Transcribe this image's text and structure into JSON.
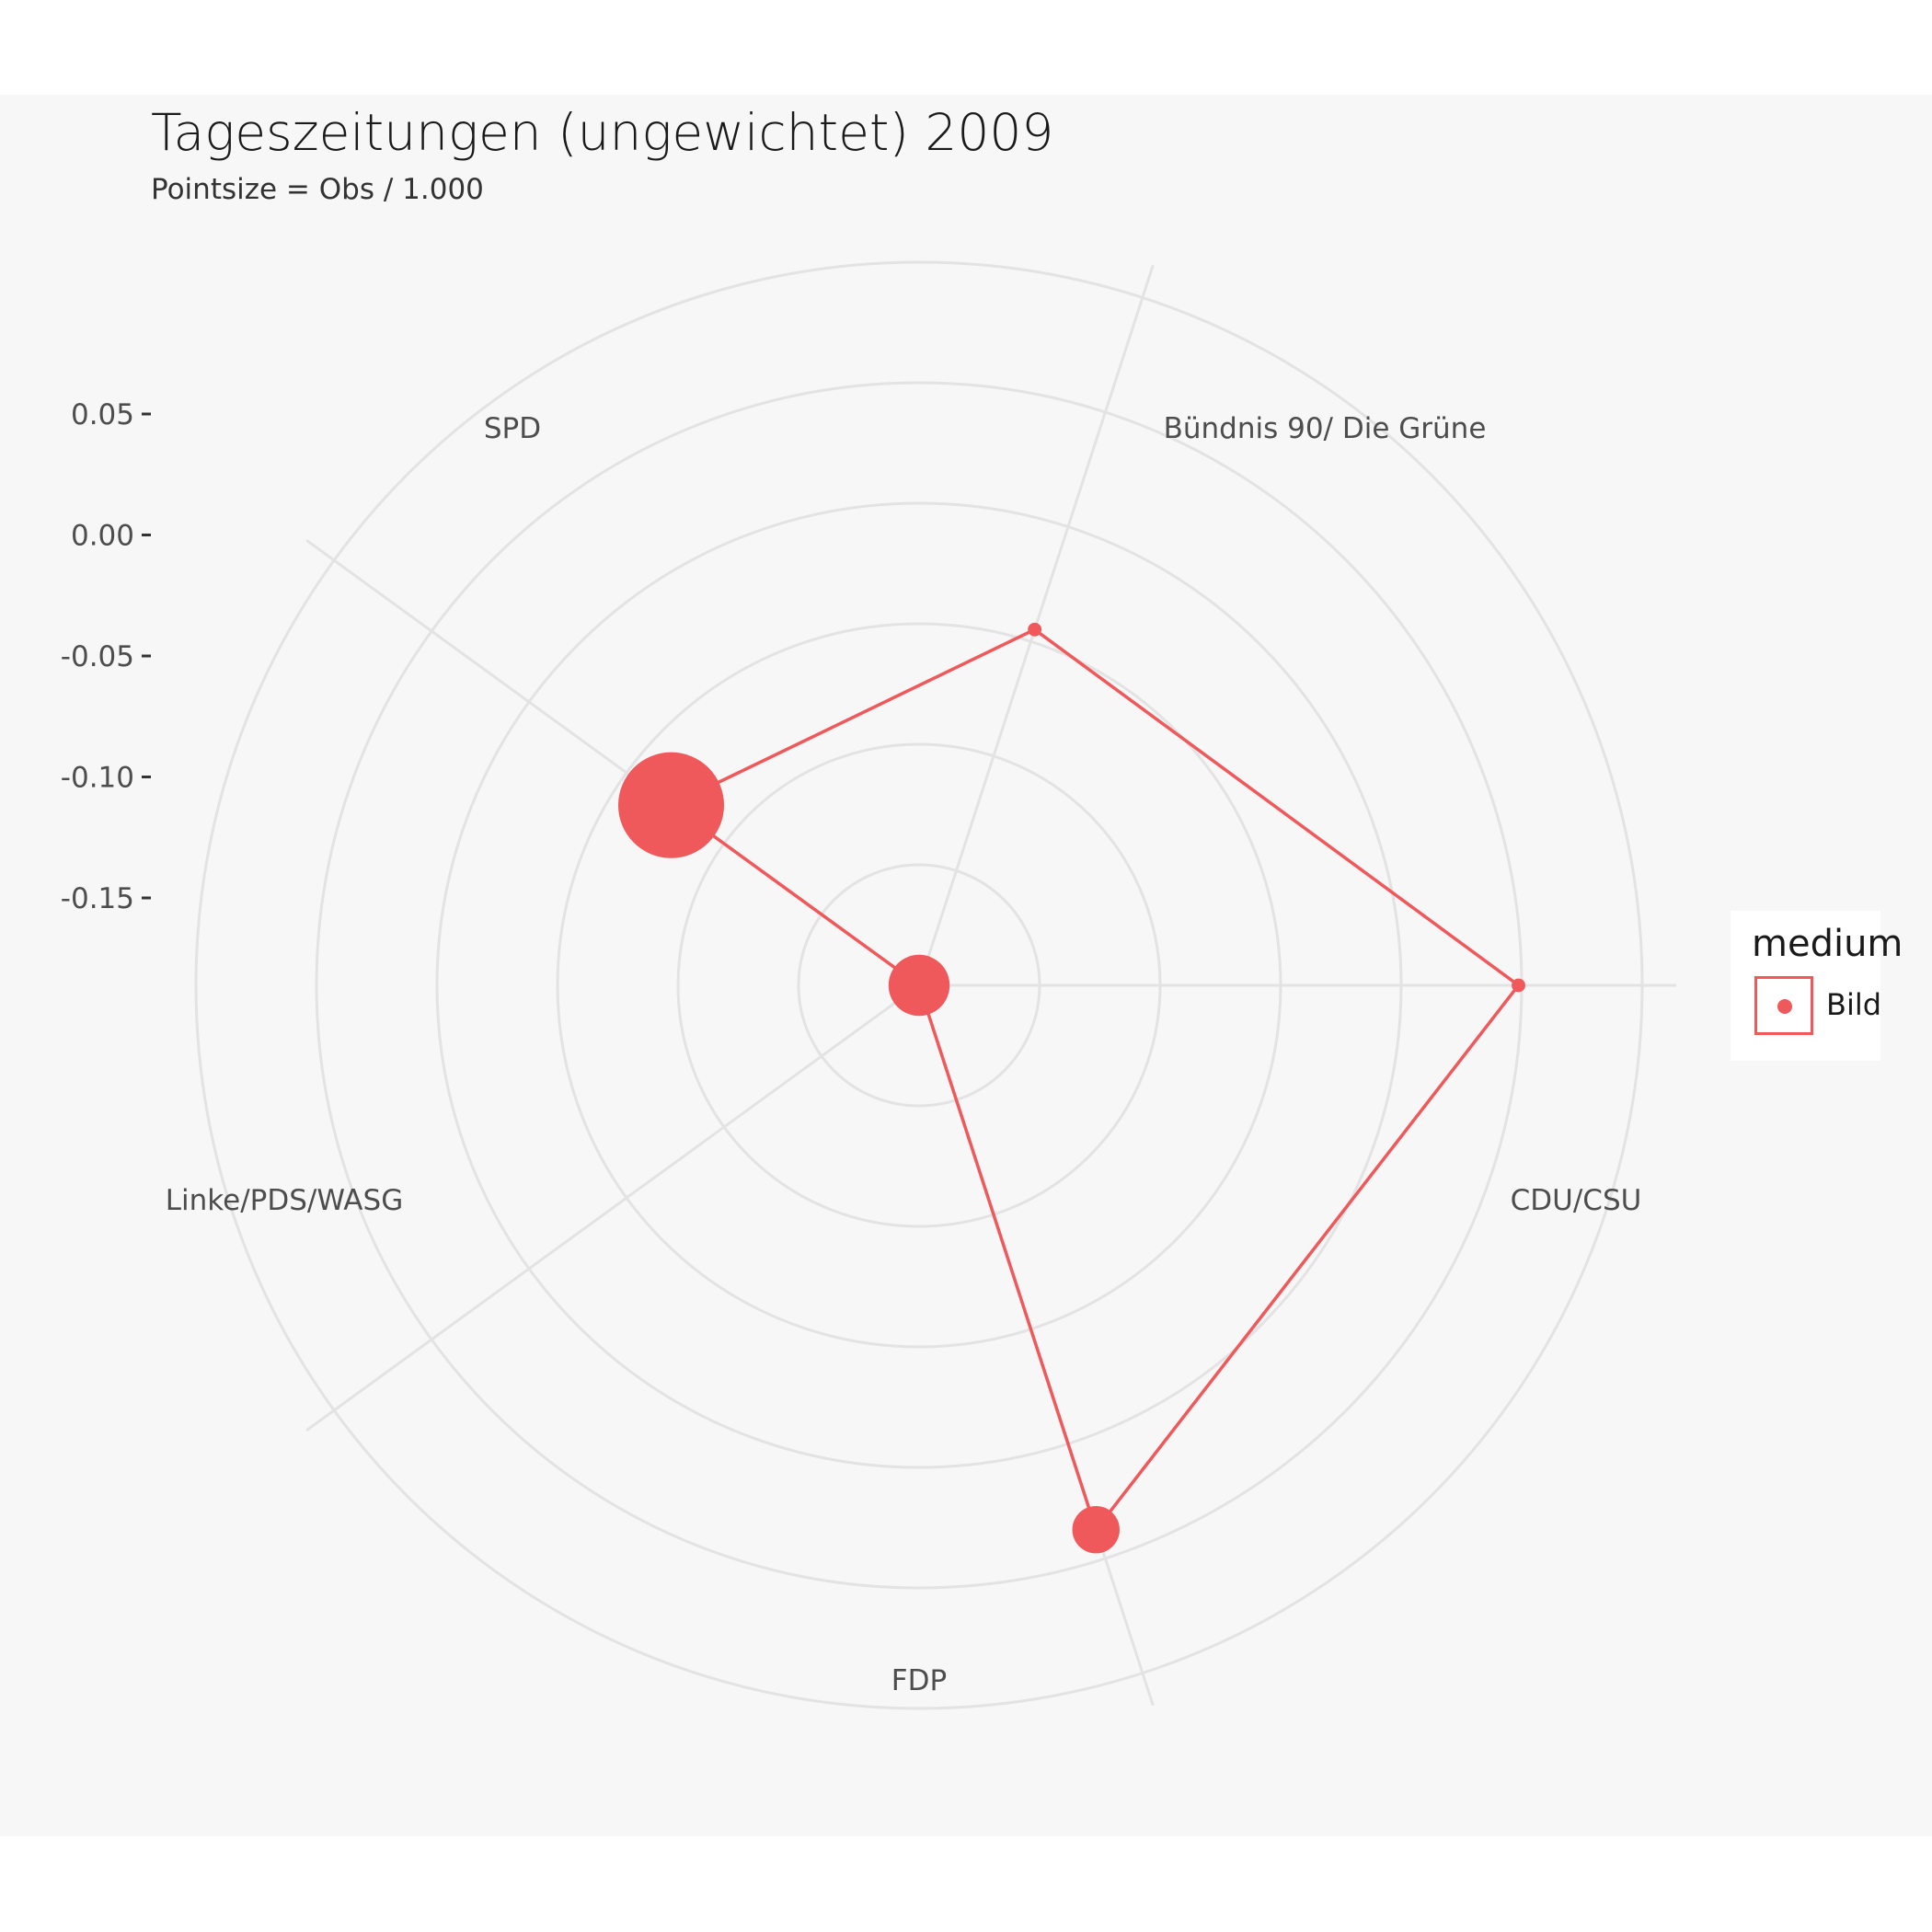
{
  "chart_data": {
    "type": "radar",
    "title": "Tageszeitungen (ungewichtet) 2009",
    "subtitle": "Pointsize = Obs / 1.000",
    "axes": [
      "SPD",
      "Bündnis 90/ Die Grüne",
      "CDU/CSU",
      "FDP",
      "Linke/PDS/WASG"
    ],
    "y_ticks": [
      "0.05",
      "0.00",
      "-0.05",
      "-0.10",
      "-0.15"
    ],
    "y_tick_values": [
      0.05,
      0.0,
      -0.05,
      -0.1,
      -0.15
    ],
    "rlim": [
      -0.236,
      0.1
    ],
    "grid": true,
    "legend_title": "medium",
    "legend_position": "right",
    "series": [
      {
        "name": "Bild",
        "color": "#f0595b",
        "values": [
          -0.1,
          -0.07,
          0.03,
          0.018,
          -0.236
        ],
        "obs_thousands": [
          30,
          0.5,
          0.5,
          6,
          10
        ]
      }
    ]
  }
}
